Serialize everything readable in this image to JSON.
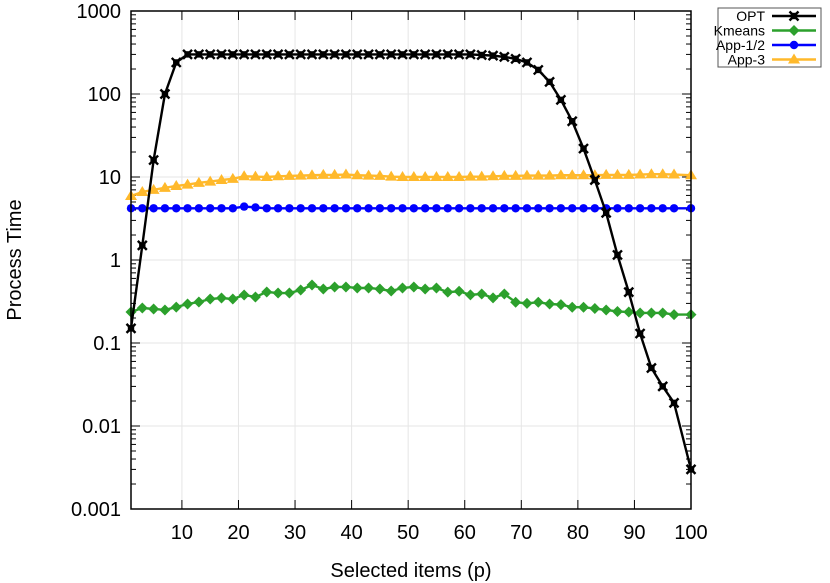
{
  "chart_data": {
    "type": "line",
    "title": "",
    "xlabel": "Selected items (p)",
    "ylabel": "Process Time",
    "xlim": [
      1,
      100
    ],
    "ylim": [
      0.001,
      1000
    ],
    "yscale": "log",
    "grid": true,
    "legend_position": "outside-top-right",
    "x_ticks": [
      10,
      20,
      30,
      40,
      50,
      60,
      70,
      80,
      90,
      100
    ],
    "y_ticks": [
      {
        "value": 1000,
        "label": "1000"
      },
      {
        "value": 100,
        "label": "100"
      },
      {
        "value": 10,
        "label": "10"
      },
      {
        "value": 1,
        "label": "1"
      },
      {
        "value": 0.1,
        "label": "0.1"
      },
      {
        "value": 0.01,
        "label": "0.01"
      },
      {
        "value": 0.001,
        "label": "0.001"
      }
    ],
    "x": [
      1,
      3,
      5,
      7,
      9,
      11,
      13,
      15,
      17,
      19,
      21,
      23,
      25,
      27,
      29,
      31,
      33,
      35,
      37,
      39,
      41,
      43,
      45,
      47,
      49,
      51,
      53,
      55,
      57,
      59,
      61,
      63,
      65,
      67,
      69,
      71,
      73,
      75,
      77,
      79,
      81,
      83,
      85,
      87,
      89,
      91,
      93,
      95,
      97,
      100
    ],
    "series": [
      {
        "name": "OPT",
        "color": "#000000",
        "marker": "x-box",
        "values": [
          0.15,
          1.5,
          16,
          100,
          240,
          300,
          300,
          300,
          300,
          300,
          300,
          300,
          300,
          300,
          300,
          300,
          300,
          300,
          300,
          300,
          300,
          300,
          300,
          300,
          300,
          300,
          300,
          300,
          300,
          300,
          300,
          295,
          290,
          280,
          265,
          240,
          195,
          140,
          85,
          47,
          22,
          9.2,
          3.7,
          1.15,
          0.41,
          0.13,
          0.05,
          0.03,
          0.019,
          0.003
        ]
      },
      {
        "name": "Kmeans",
        "color": "#2ca02c",
        "marker": "diamond",
        "values": [
          0.236,
          0.264,
          0.257,
          0.25,
          0.271,
          0.295,
          0.312,
          0.339,
          0.348,
          0.339,
          0.379,
          0.358,
          0.412,
          0.4,
          0.4,
          0.435,
          0.5,
          0.447,
          0.473,
          0.473,
          0.46,
          0.46,
          0.447,
          0.423,
          0.46,
          0.473,
          0.447,
          0.46,
          0.41,
          0.42,
          0.38,
          0.39,
          0.35,
          0.39,
          0.31,
          0.3,
          0.31,
          0.295,
          0.29,
          0.27,
          0.27,
          0.26,
          0.25,
          0.24,
          0.236,
          0.23,
          0.23,
          0.23,
          0.22,
          0.22
        ]
      },
      {
        "name": "App-1/2",
        "color": "#0000ff",
        "marker": "circle",
        "values": [
          4.2,
          4.2,
          4.2,
          4.2,
          4.2,
          4.2,
          4.2,
          4.2,
          4.2,
          4.2,
          4.4,
          4.3,
          4.2,
          4.2,
          4.2,
          4.2,
          4.2,
          4.2,
          4.2,
          4.2,
          4.2,
          4.2,
          4.2,
          4.2,
          4.2,
          4.2,
          4.2,
          4.2,
          4.2,
          4.2,
          4.2,
          4.2,
          4.2,
          4.2,
          4.2,
          4.2,
          4.2,
          4.2,
          4.2,
          4.2,
          4.2,
          4.2,
          4.2,
          4.2,
          4.2,
          4.2,
          4.2,
          4.2,
          4.2,
          4.2
        ]
      },
      {
        "name": "App-3",
        "color": "#ffb92b",
        "marker": "triangle",
        "values": [
          5.9,
          6.6,
          7.0,
          7.4,
          7.8,
          8.1,
          8.5,
          8.8,
          9.2,
          9.5,
          10.2,
          10.1,
          10.0,
          10.2,
          10.3,
          10.4,
          10.5,
          10.6,
          10.6,
          10.7,
          10.5,
          10.4,
          10.3,
          10.1,
          10.0,
          10.0,
          10.0,
          10.0,
          10.0,
          10.0,
          10.1,
          10.1,
          10.2,
          10.3,
          10.3,
          10.4,
          10.4,
          10.4,
          10.5,
          10.5,
          10.5,
          10.5,
          10.6,
          10.6,
          10.6,
          10.7,
          10.8,
          10.8,
          10.7,
          10.5
        ]
      }
    ]
  },
  "legend": {
    "items": [
      {
        "label": "OPT"
      },
      {
        "label": "Kmeans"
      },
      {
        "label": "App-1/2"
      },
      {
        "label": "App-3"
      }
    ]
  },
  "axes": {
    "xlabel": "Selected items (p)",
    "ylabel": "Process Time"
  }
}
